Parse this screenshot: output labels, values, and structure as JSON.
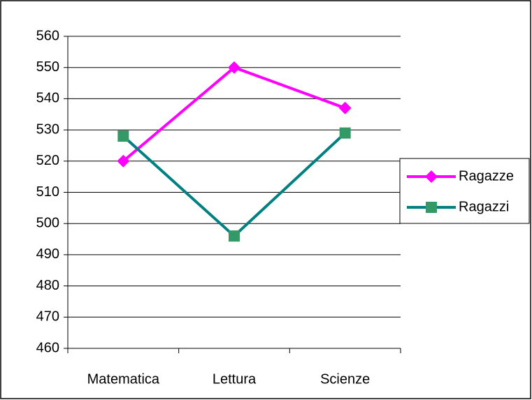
{
  "chart_data": {
    "type": "line",
    "categories": [
      "Matematica",
      "Lettura",
      "Scienze"
    ],
    "series": [
      {
        "name": "Ragazze",
        "color": "#ff00ff",
        "marker": "diamond",
        "marker_color": "#ff00ff",
        "values": [
          520,
          550,
          537
        ]
      },
      {
        "name": "Ragazzi",
        "color": "#008080",
        "marker": "square",
        "marker_color": "#339966",
        "values": [
          528,
          496,
          529
        ]
      }
    ],
    "ylim": [
      460,
      560
    ],
    "yticks": [
      460,
      470,
      480,
      490,
      500,
      510,
      520,
      530,
      540,
      550,
      560
    ],
    "grid": true,
    "legend": "right"
  }
}
